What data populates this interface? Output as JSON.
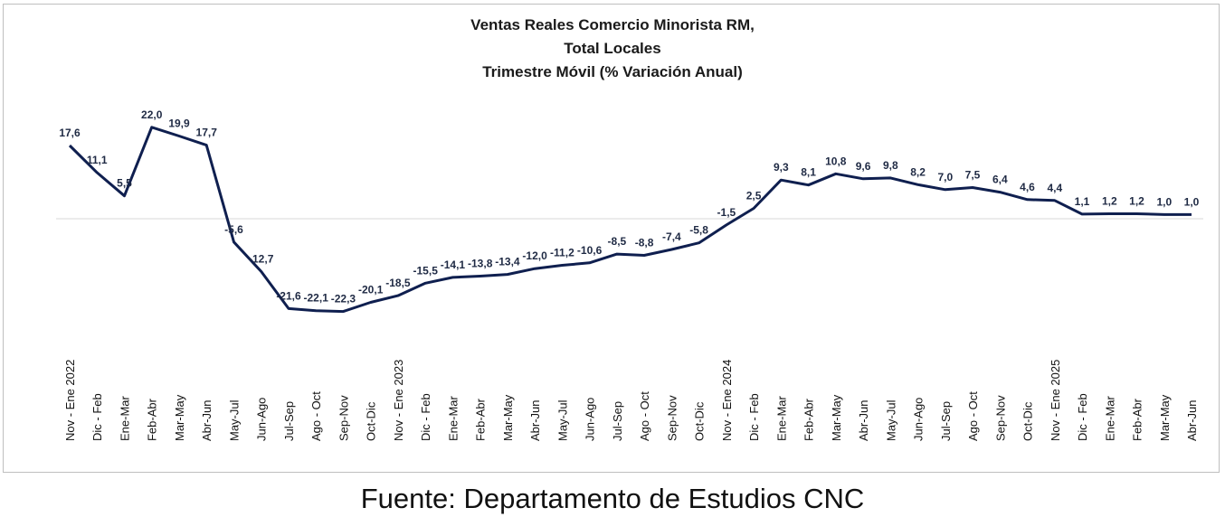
{
  "chart_data": {
    "type": "line",
    "title_lines": [
      "Ventas Reales Comercio Minorista RM,",
      "Total Locales",
      "Trimestre Móvil (% Variación Anual)"
    ],
    "xlabel": "",
    "ylabel": "",
    "grid": false,
    "legend": "none",
    "line_color": "#0f1f4f",
    "axis_color": "#d9d9d9",
    "categories": [
      "Nov - Ene 2022",
      "Dic - Feb",
      "Ene-Mar",
      "Feb-Abr",
      "Mar-May",
      "Abr-Jun",
      "May-Jul",
      "Jun-Ago",
      "Jul-Sep",
      "Ago - Oct",
      "Sep-Nov",
      "Oct-Dic",
      "Nov - Ene 2023",
      "Dic - Feb",
      "Ene-Mar",
      "Feb-Abr",
      "Mar-May",
      "Abr-Jun",
      "May-Jul",
      "Jun-Ago",
      "Jul-Sep",
      "Ago - Oct",
      "Sep-Nov",
      "Oct-Dic",
      "Nov - Ene 2024",
      "Dic - Feb",
      "Ene-Mar",
      "Feb-Abr",
      "Mar-May",
      "Abr-Jun",
      "May-Jul",
      "Jun-Ago",
      "Jul-Sep",
      "Ago - Oct",
      "Sep-Nov",
      "Oct-Dic",
      "Nov - Ene 2025",
      "Dic - Feb",
      "Ene-Mar",
      "Feb-Abr",
      "Mar-May",
      "Abr-Jun"
    ],
    "series": [
      {
        "values": [
          17.6,
          11.1,
          5.5,
          22.0,
          19.9,
          17.7,
          -5.6,
          -12.7,
          -21.6,
          -22.1,
          -22.3,
          -20.1,
          -18.5,
          -15.5,
          -14.1,
          -13.8,
          -13.4,
          -12.0,
          -11.2,
          -10.6,
          -8.5,
          -8.8,
          -7.4,
          -5.8,
          -1.5,
          2.5,
          9.3,
          8.1,
          10.8,
          9.6,
          9.8,
          8.2,
          7.0,
          7.5,
          6.4,
          4.6,
          4.4,
          1.1,
          1.2,
          1.2,
          1.0,
          1.0
        ],
        "labels": [
          "17,6",
          "11,1",
          "5,5",
          "22,0",
          "19,9",
          "17,7",
          "-5,6",
          "-12,7",
          "-21,6",
          "-22,1",
          "-22,3",
          "-20,1",
          "-18,5",
          "-15,5",
          "-14,1",
          "-13,8",
          "-13,4",
          "-12,0",
          "-11,2",
          "-10,6",
          "-8,5",
          "-8,8",
          "-7,4",
          "-5,8",
          "-1,5",
          "2,5",
          "9,3",
          "8,1",
          "10,8",
          "9,6",
          "9,8",
          "8,2",
          "7,0",
          "7,5",
          "6,4",
          "4,6",
          "4,4",
          "1,1",
          "1,2",
          "1,2",
          "1,0",
          "1,0"
        ]
      }
    ]
  },
  "source": "Fuente: Departamento de Estudios CNC"
}
